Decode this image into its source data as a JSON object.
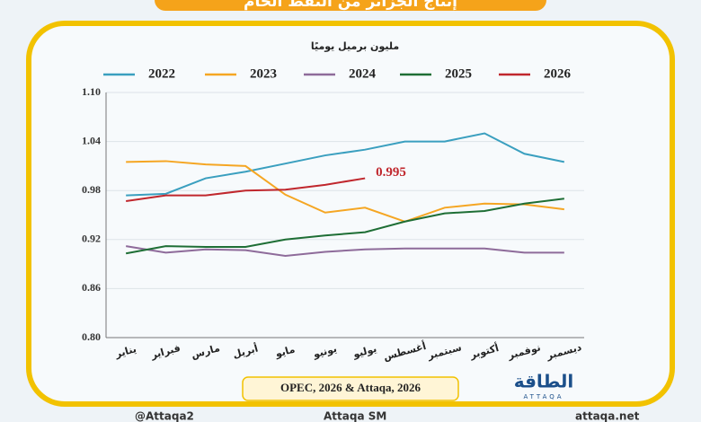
{
  "chart_data": {
    "type": "line",
    "title": "إنتاج الجزائر من النفط الخام",
    "y_label": "مليون برميل يوميًا",
    "source": "OPEC, 2026 & Attaqa, 2026",
    "categories": [
      "يناير",
      "فبراير",
      "مارس",
      "أبريل",
      "مايو",
      "يونيو",
      "يوليو",
      "أغسطس",
      "سبتمبر",
      "أكتوبر",
      "نوفمبر",
      "ديسمبر"
    ],
    "series": [
      {
        "name": "2022",
        "color": "#3a9fbf",
        "values": [
          0.974,
          0.976,
          0.995,
          1.003,
          1.013,
          1.023,
          1.03,
          1.04,
          1.04,
          1.05,
          1.025,
          1.015
        ]
      },
      {
        "name": "2023",
        "color": "#f5a623",
        "values": [
          1.015,
          1.016,
          1.012,
          1.01,
          0.975,
          0.953,
          0.959,
          0.942,
          0.959,
          0.964,
          0.963,
          0.957
        ]
      },
      {
        "name": "2024",
        "color": "#8e6b9a",
        "values": [
          0.912,
          0.904,
          0.908,
          0.907,
          0.9,
          0.905,
          0.908,
          0.909,
          0.909,
          0.909,
          0.904,
          0.904
        ]
      },
      {
        "name": "2025",
        "color": "#1e6e35",
        "values": [
          0.903,
          0.912,
          0.911,
          0.911,
          0.92,
          0.925,
          0.929,
          0.942,
          0.952,
          0.955,
          0.964,
          0.97
        ]
      },
      {
        "name": "2026",
        "color": "#c0272d",
        "values": [
          0.967,
          0.974,
          0.974,
          0.98,
          0.981,
          0.987,
          0.995,
          null,
          null,
          null,
          null,
          null
        ]
      }
    ],
    "annotation_index": {
      "series": 4,
      "point": 6
    },
    "ylim": [
      0.8,
      1.1
    ],
    "yticks": [
      {
        "value": 0.8,
        "label": "0.80"
      },
      0.86,
      0.92,
      0.98,
      1.04,
      {
        "value": 1.1,
        "label": "1.10"
      }
    ],
    "grid": true,
    "legend": "top"
  },
  "logo": {
    "name": "الطاقة",
    "sub": "ATTAQA"
  },
  "footer": [
    "@Attaqa2",
    "Attaqa SM",
    "attaqa.net"
  ]
}
